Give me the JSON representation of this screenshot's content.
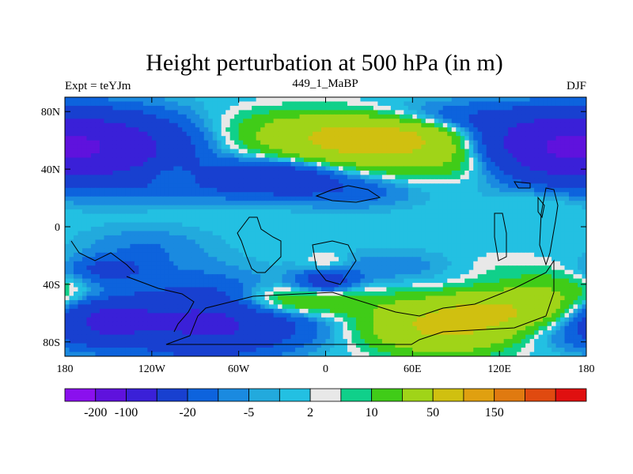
{
  "chart_data": {
    "type": "heatmap",
    "title": "Height perturbation at 500 hPa (in m)",
    "left_label": "Expt = teYJm",
    "center_label": "449_1_MaBP",
    "right_label": "DJF",
    "x_ticks": [
      "180",
      "120W",
      "60W",
      "0",
      "60E",
      "120E",
      "180"
    ],
    "x_tick_values": [
      -180,
      -120,
      -60,
      0,
      60,
      120,
      180
    ],
    "y_ticks": [
      "80N",
      "40N",
      "0",
      "40S",
      "80S"
    ],
    "y_tick_values": [
      80,
      40,
      0,
      -40,
      -80
    ],
    "xlim": [
      -180,
      180
    ],
    "ylim": [
      -90,
      90
    ],
    "contour_levels": [
      -200,
      -100,
      -50,
      -20,
      -10,
      -5,
      -2,
      2,
      5,
      10,
      20,
      50,
      100,
      150,
      200
    ],
    "colorbar_labels": [
      "-200",
      "-100",
      "-20",
      "-5",
      "2",
      "10",
      "50",
      "150"
    ],
    "colorbar_label_values": [
      -200,
      -100,
      -20,
      -5,
      2,
      10,
      50,
      150
    ],
    "colors": [
      "#8a10ee",
      "#5f12dd",
      "#3a20d8",
      "#1840d0",
      "#0d63dd",
      "#1a8ae0",
      "#22aadd",
      "#23c0e2",
      "#e8e8e8",
      "#10d08a",
      "#40cc18",
      "#a0d418",
      "#d0c010",
      "#e0a010",
      "#e07a10",
      "#e04a10",
      "#e01010"
    ],
    "features": [
      {
        "lon": -160,
        "lat": 55,
        "value": -80,
        "sx": 45,
        "sy": 16
      },
      {
        "lon": -110,
        "lat": 38,
        "value": 10,
        "sx": 10,
        "sy": 6
      },
      {
        "lon": -100,
        "lat": 25,
        "value": -8,
        "sx": 35,
        "sy": 6
      },
      {
        "lon": -20,
        "lat": 70,
        "value": 10,
        "sx": 40,
        "sy": 10
      },
      {
        "lon": 40,
        "lat": 62,
        "value": 55,
        "sx": 40,
        "sy": 10
      },
      {
        "lon": 10,
        "lat": 55,
        "value": 25,
        "sx": 55,
        "sy": 14
      },
      {
        "lon": 100,
        "lat": 45,
        "value": 20,
        "sx": 35,
        "sy": 10
      },
      {
        "lon": -35,
        "lat": 35,
        "value": -45,
        "sx": 32,
        "sy": 9
      },
      {
        "lon": 20,
        "lat": 25,
        "value": -15,
        "sx": 30,
        "sy": 8
      },
      {
        "lon": 150,
        "lat": 55,
        "value": -60,
        "sx": 38,
        "sy": 15
      },
      {
        "lon": 150,
        "lat": 20,
        "value": 5,
        "sx": 20,
        "sy": 8
      },
      {
        "lon": 80,
        "lat": 75,
        "value": -20,
        "sx": 40,
        "sy": 8
      },
      {
        "lon": -125,
        "lat": -15,
        "value": -10,
        "sx": 30,
        "sy": 10
      },
      {
        "lon": -150,
        "lat": -30,
        "value": -25,
        "sx": 20,
        "sy": 6
      },
      {
        "lon": 0,
        "lat": -25,
        "value": 10,
        "sx": 10,
        "sy": 5
      },
      {
        "lon": 0,
        "lat": -38,
        "value": -30,
        "sx": 15,
        "sy": 6
      },
      {
        "lon": 45,
        "lat": -28,
        "value": -8,
        "sx": 35,
        "sy": 8
      },
      {
        "lon": 120,
        "lat": -30,
        "value": 5,
        "sx": 25,
        "sy": 10
      },
      {
        "lon": -150,
        "lat": -65,
        "value": -60,
        "sx": 25,
        "sy": 12
      },
      {
        "lon": -85,
        "lat": -65,
        "value": -50,
        "sx": 30,
        "sy": 18
      },
      {
        "lon": -40,
        "lat": -70,
        "value": -20,
        "sx": 35,
        "sy": 12
      },
      {
        "lon": -20,
        "lat": -52,
        "value": 25,
        "sx": 40,
        "sy": 7
      },
      {
        "lon": 80,
        "lat": -70,
        "value": 55,
        "sx": 35,
        "sy": 12
      },
      {
        "lon": 120,
        "lat": -58,
        "value": 40,
        "sx": 30,
        "sy": 9
      },
      {
        "lon": 160,
        "lat": -45,
        "value": 15,
        "sx": 25,
        "sy": 10
      },
      {
        "lon": 160,
        "lat": -75,
        "value": -8,
        "sx": 25,
        "sy": 8
      },
      {
        "lon": -160,
        "lat": -50,
        "value": 8,
        "sx": 20,
        "sy": 5
      }
    ]
  }
}
